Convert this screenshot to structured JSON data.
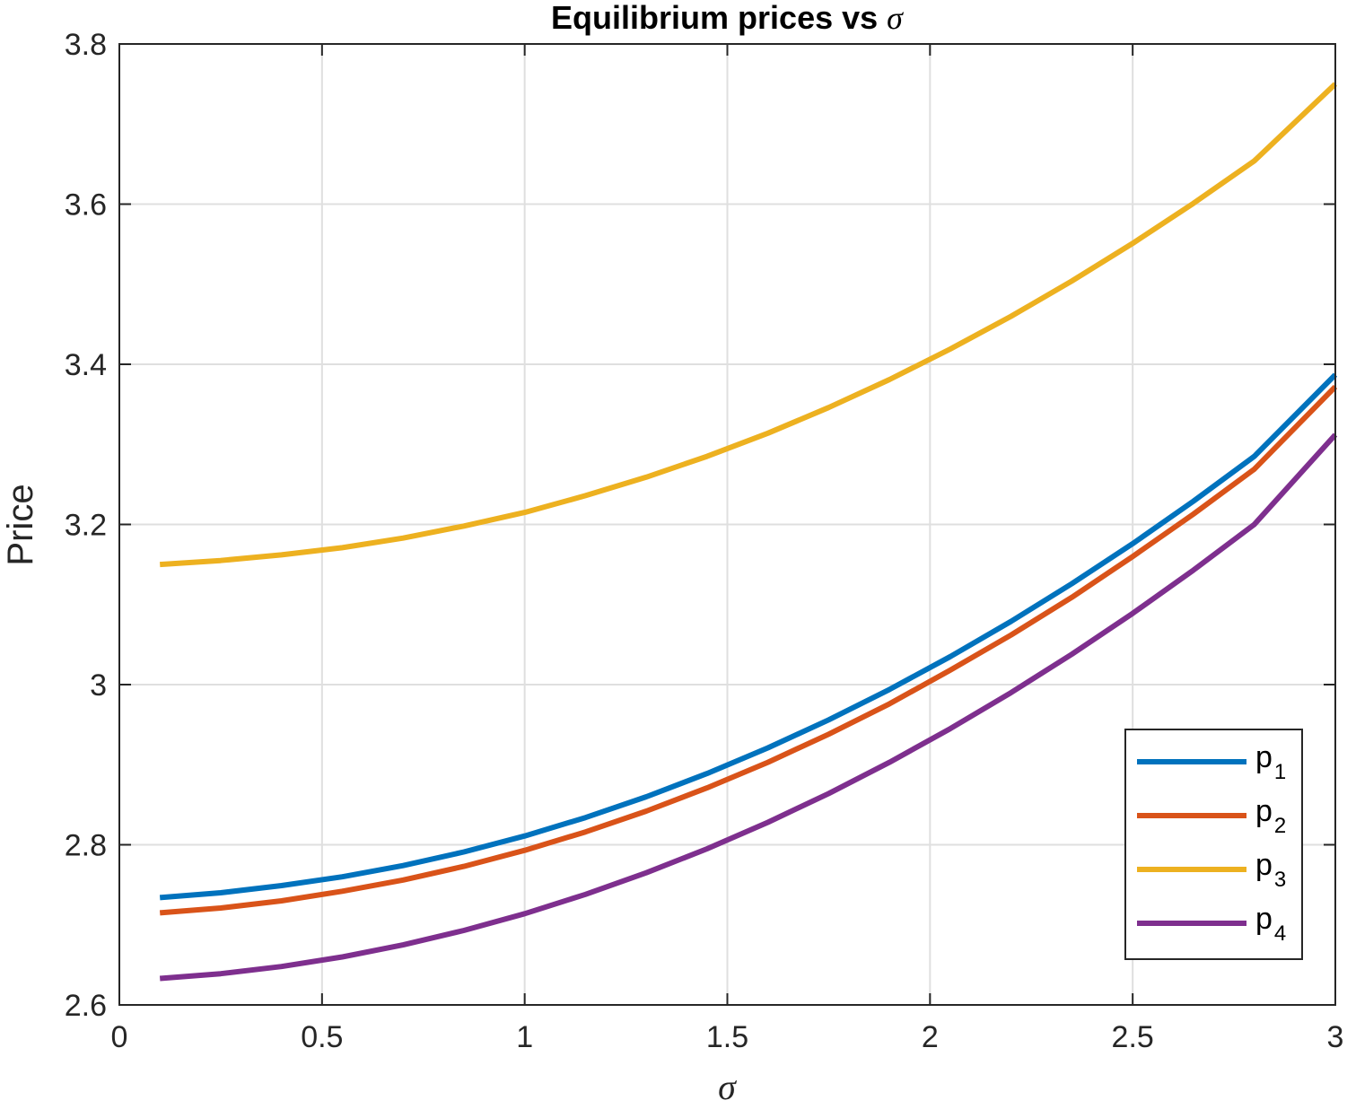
{
  "chart_data": {
    "type": "line",
    "title": "Equilibrium prices vs ",
    "title_symbol": "σ",
    "xlabel": "σ",
    "ylabel": "Price",
    "xlim": [
      0,
      3
    ],
    "ylim": [
      2.6,
      3.8
    ],
    "xticks": [
      0,
      0.5,
      1,
      1.5,
      2,
      2.5,
      3
    ],
    "xtick_labels": [
      "0",
      "0.5",
      "1",
      "1.5",
      "2",
      "2.5",
      "3"
    ],
    "yticks": [
      2.6,
      2.8,
      3.0,
      3.2,
      3.4,
      3.6,
      3.8
    ],
    "ytick_labels": [
      "2.6",
      "2.8",
      "3",
      "3.2",
      "3.4",
      "3.6",
      "3.8"
    ],
    "grid": true,
    "legend_position": "bottom-right",
    "x": [
      0.1,
      0.25,
      0.4,
      0.55,
      0.7,
      0.85,
      1.0,
      1.15,
      1.3,
      1.45,
      1.6,
      1.75,
      1.9,
      2.05,
      2.2,
      2.35,
      2.5,
      2.65,
      2.8,
      3.0
    ],
    "series": [
      {
        "name": "p",
        "subscript": "1",
        "color": "#0072BD",
        "values": [
          2.734,
          2.74,
          2.749,
          2.76,
          2.774,
          2.791,
          2.811,
          2.834,
          2.86,
          2.889,
          2.921,
          2.956,
          2.994,
          3.035,
          3.079,
          3.126,
          3.176,
          3.229,
          3.285,
          3.387
        ]
      },
      {
        "name": "p",
        "subscript": "2",
        "color": "#D95319",
        "values": [
          2.715,
          2.721,
          2.73,
          2.742,
          2.756,
          2.773,
          2.793,
          2.816,
          2.842,
          2.871,
          2.903,
          2.938,
          2.976,
          3.018,
          3.062,
          3.109,
          3.16,
          3.213,
          3.269,
          3.372
        ]
      },
      {
        "name": "p",
        "subscript": "3",
        "color": "#EDB120",
        "values": [
          3.15,
          3.155,
          3.162,
          3.171,
          3.183,
          3.198,
          3.215,
          3.236,
          3.259,
          3.285,
          3.314,
          3.346,
          3.381,
          3.419,
          3.46,
          3.504,
          3.551,
          3.601,
          3.654,
          3.75
        ]
      },
      {
        "name": "p",
        "subscript": "4",
        "color": "#7E2F8E",
        "values": [
          2.633,
          2.639,
          2.648,
          2.66,
          2.675,
          2.693,
          2.714,
          2.738,
          2.765,
          2.795,
          2.828,
          2.864,
          2.903,
          2.945,
          2.99,
          3.038,
          3.089,
          3.143,
          3.2,
          3.312
        ]
      }
    ]
  }
}
